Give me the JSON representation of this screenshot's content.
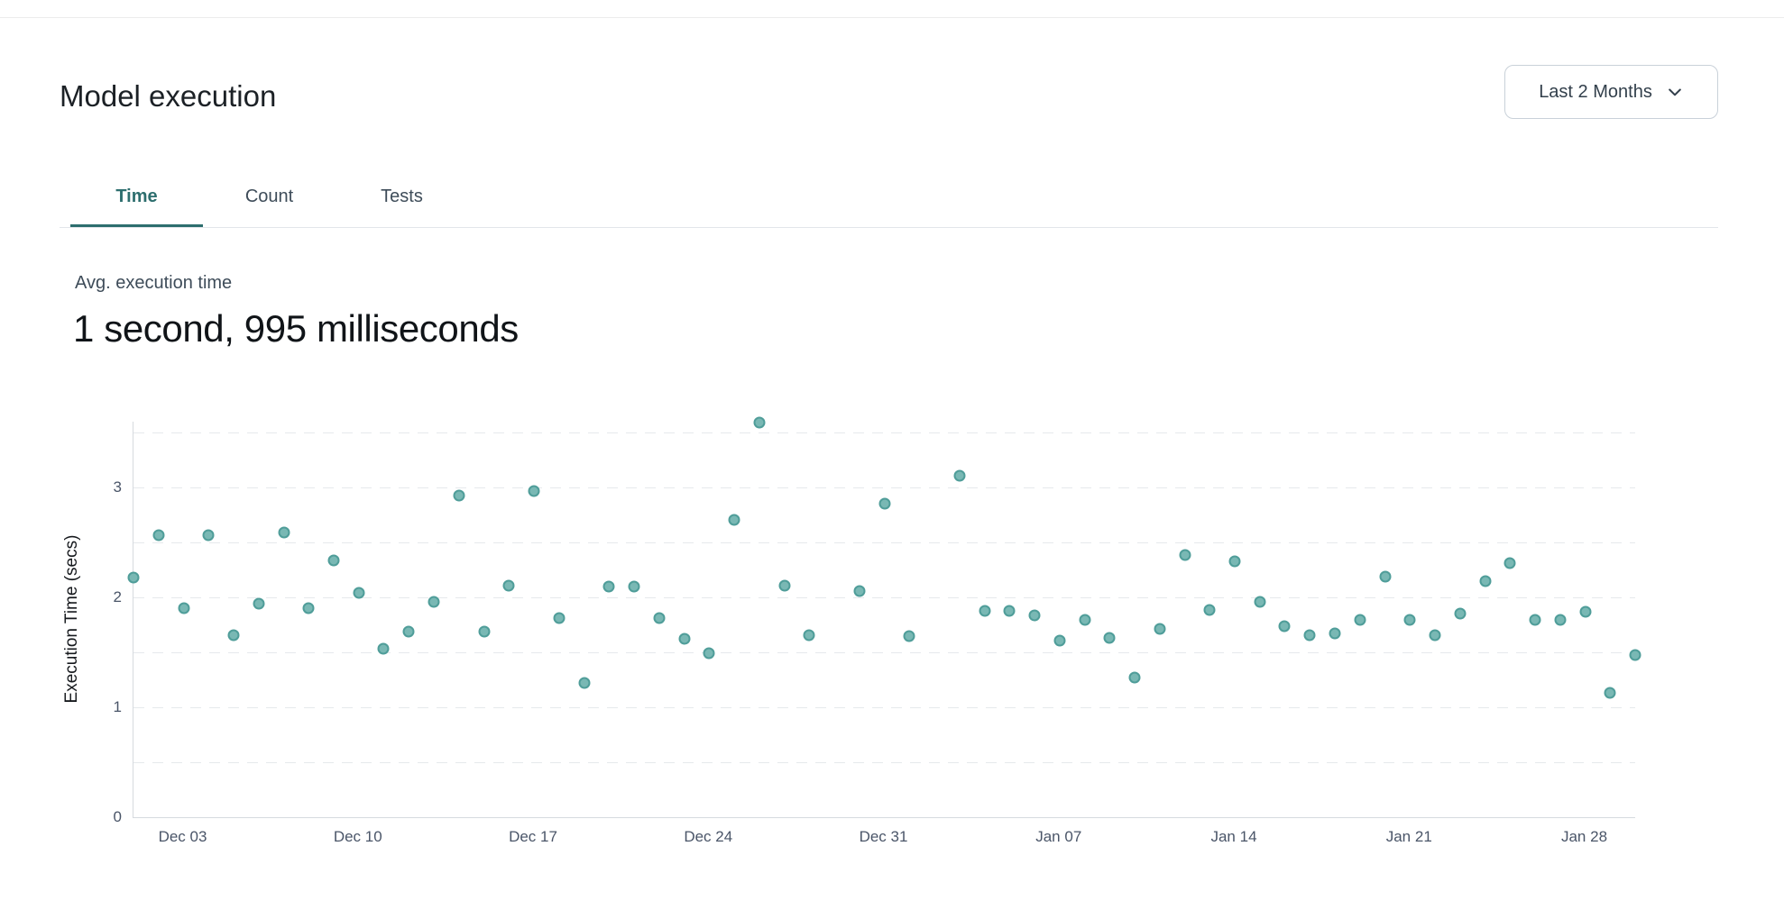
{
  "header": {
    "title": "Model execution",
    "range_selector": {
      "label": "Last 2 Months"
    }
  },
  "tabs": [
    {
      "label": "Time",
      "active": true
    },
    {
      "label": "Count",
      "active": false
    },
    {
      "label": "Tests",
      "active": false
    }
  ],
  "kpi": {
    "label": "Avg. execution time",
    "value": "1 second, 995 milliseconds"
  },
  "chart_data": {
    "type": "scatter",
    "title": "",
    "xlabel": "",
    "ylabel": "Execution Time (secs)",
    "ylim": [
      0,
      3.6
    ],
    "grid": "horizontal dashed lines every 0.5",
    "grid_step": 0.5,
    "legend": "none",
    "y_ticks": [
      0,
      1,
      2,
      3
    ],
    "x_ticks": [
      "Dec 03",
      "Dec 10",
      "Dec 17",
      "Dec 24",
      "Dec 31",
      "Jan 07",
      "Jan 14",
      "Jan 21",
      "Jan 28"
    ],
    "x_range": [
      "Dec 01",
      "Jan 30"
    ],
    "colors": {
      "dot_fill": "#79b8b4",
      "dot_stroke": "#4f9d99",
      "accent_teal": "#2d6e6e"
    },
    "points": [
      {
        "date": "Dec 01",
        "secs": 2.18
      },
      {
        "date": "Dec 02",
        "secs": 2.57
      },
      {
        "date": "Dec 03",
        "secs": 1.9
      },
      {
        "date": "Dec 04",
        "secs": 2.57
      },
      {
        "date": "Dec 05",
        "secs": 1.66
      },
      {
        "date": "Dec 06",
        "secs": 1.94
      },
      {
        "date": "Dec 07",
        "secs": 2.59
      },
      {
        "date": "Dec 08",
        "secs": 1.9
      },
      {
        "date": "Dec 09",
        "secs": 2.34
      },
      {
        "date": "Dec 10",
        "secs": 2.04
      },
      {
        "date": "Dec 11",
        "secs": 1.53
      },
      {
        "date": "Dec 12",
        "secs": 1.69
      },
      {
        "date": "Dec 13",
        "secs": 1.96
      },
      {
        "date": "Dec 14",
        "secs": 2.93
      },
      {
        "date": "Dec 15",
        "secs": 1.69
      },
      {
        "date": "Dec 16",
        "secs": 2.11
      },
      {
        "date": "Dec 17",
        "secs": 2.97
      },
      {
        "date": "Dec 18",
        "secs": 1.81
      },
      {
        "date": "Dec 19",
        "secs": 1.22
      },
      {
        "date": "Dec 20",
        "secs": 2.1
      },
      {
        "date": "Dec 21",
        "secs": 2.1
      },
      {
        "date": "Dec 22",
        "secs": 1.81
      },
      {
        "date": "Dec 23",
        "secs": 1.62
      },
      {
        "date": "Dec 24",
        "secs": 1.49
      },
      {
        "date": "Dec 25",
        "secs": 2.71
      },
      {
        "date": "Dec 26",
        "secs": 3.59
      },
      {
        "date": "Dec 27",
        "secs": 2.11
      },
      {
        "date": "Dec 28",
        "secs": 1.66
      },
      {
        "date": "Dec 30",
        "secs": 2.06
      },
      {
        "date": "Dec 31",
        "secs": 2.85
      },
      {
        "date": "Jan 01",
        "secs": 1.65
      },
      {
        "date": "Jan 03",
        "secs": 3.11
      },
      {
        "date": "Jan 04",
        "secs": 1.88
      },
      {
        "date": "Jan 05",
        "secs": 1.88
      },
      {
        "date": "Jan 06",
        "secs": 1.84
      },
      {
        "date": "Jan 07",
        "secs": 1.61
      },
      {
        "date": "Jan 08",
        "secs": 1.8
      },
      {
        "date": "Jan 09",
        "secs": 1.63
      },
      {
        "date": "Jan 10",
        "secs": 1.27
      },
      {
        "date": "Jan 11",
        "secs": 1.71
      },
      {
        "date": "Jan 12",
        "secs": 2.39
      },
      {
        "date": "Jan 13",
        "secs": 1.89
      },
      {
        "date": "Jan 14",
        "secs": 2.33
      },
      {
        "date": "Jan 15",
        "secs": 1.96
      },
      {
        "date": "Jan 16",
        "secs": 1.74
      },
      {
        "date": "Jan 17",
        "secs": 1.66
      },
      {
        "date": "Jan 18",
        "secs": 1.67
      },
      {
        "date": "Jan 19",
        "secs": 1.8
      },
      {
        "date": "Jan 20",
        "secs": 2.19
      },
      {
        "date": "Jan 21",
        "secs": 1.8
      },
      {
        "date": "Jan 22",
        "secs": 1.66
      },
      {
        "date": "Jan 23",
        "secs": 1.85
      },
      {
        "date": "Jan 24",
        "secs": 2.15
      },
      {
        "date": "Jan 25",
        "secs": 2.31
      },
      {
        "date": "Jan 26",
        "secs": 1.8
      },
      {
        "date": "Jan 27",
        "secs": 1.8
      },
      {
        "date": "Jan 28",
        "secs": 1.87
      },
      {
        "date": "Jan 29",
        "secs": 1.13
      },
      {
        "date": "Jan 30",
        "secs": 1.48
      }
    ]
  }
}
